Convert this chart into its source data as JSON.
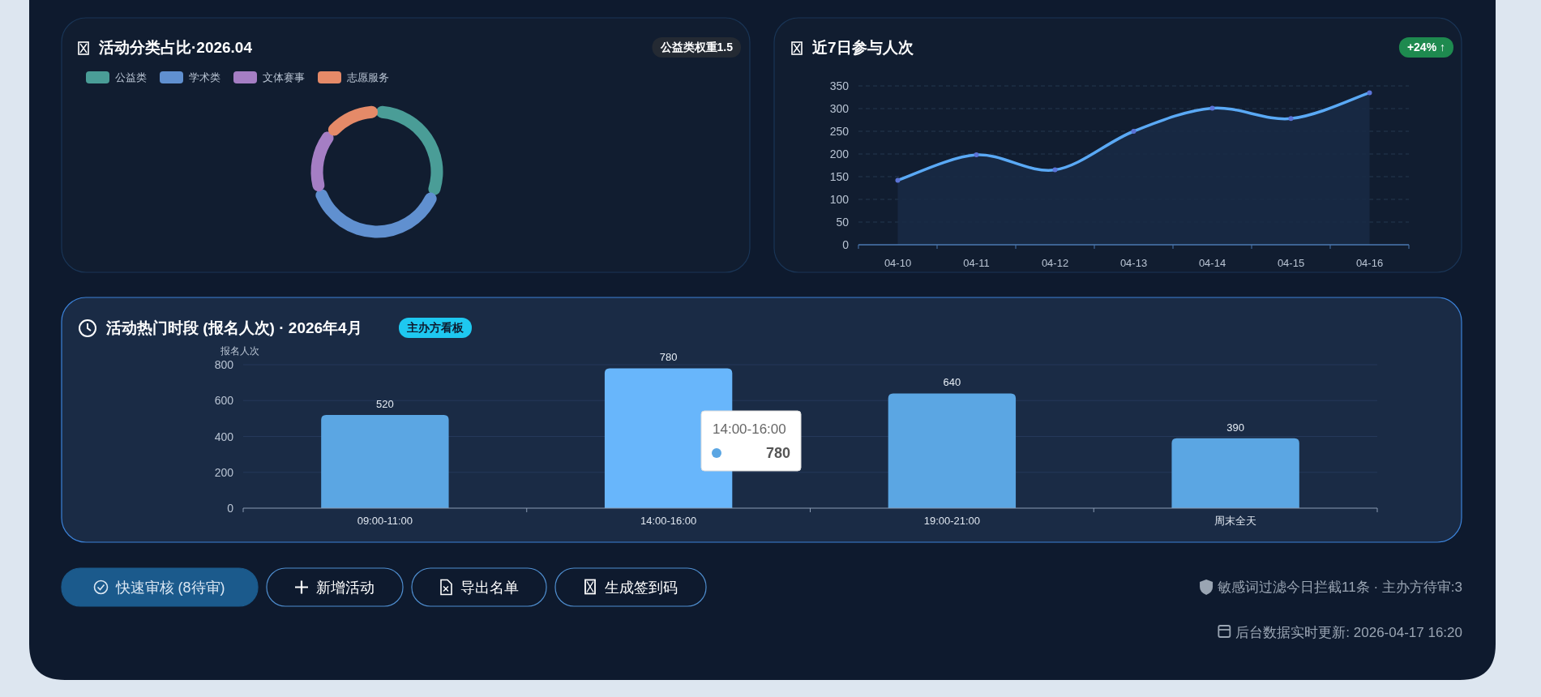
{
  "chart_data": [
    {
      "type": "donut",
      "title": "活动分类占比·2026.04",
      "annotations": [
        "公益类权重1.5"
      ],
      "categories": [
        "公益类",
        "学术类",
        "文体赛事",
        "志愿服务"
      ],
      "values": [
        31,
        39,
        16,
        14
      ],
      "colors": [
        "#4a9d97",
        "#6090d0",
        "#a57ec4",
        "#e58a68"
      ],
      "legend": "top left"
    },
    {
      "type": "area",
      "title": "近7日参与人次",
      "annotations": [
        "+24% ↑"
      ],
      "categories": [
        "04-10",
        "04-11",
        "04-12",
        "04-13",
        "04-14",
        "04-15",
        "04-16"
      ],
      "series": [
        {
          "color": "#5aa9f5",
          "values": [
            142,
            198,
            165,
            250,
            301,
            278,
            335
          ]
        }
      ],
      "ylim": [
        0,
        350
      ],
      "yticks": [
        0,
        50,
        100,
        150,
        200,
        250,
        300,
        350
      ],
      "grid": "y",
      "marker": "circle"
    },
    {
      "type": "bar",
      "title": "活动热门时段 (报名人次) · 2026年4月",
      "ylabel": "报名人次",
      "annotations": [
        "主办方看板",
        "14:00-16:00",
        "780"
      ],
      "categories": [
        "09:00-11:00",
        "14:00-16:00",
        "19:00-21:00",
        "周末全天"
      ],
      "values": [
        520,
        780,
        640,
        390
      ],
      "colors": [
        "#5ba6e3",
        "#68b6fb",
        "#5ba6e3",
        "#5ba6e3"
      ],
      "ylim": [
        0,
        800
      ],
      "yticks": [
        0,
        200,
        400,
        600,
        800
      ],
      "grid": "y",
      "data_labels": true
    },
    {
      "type": "other",
      "annotations": [
        "快速审核 (8待审)",
        "新增活动",
        "导出名单",
        "生成签到码",
        "敏感词过滤今日拦截11条 · 主办方待审:3",
        "后台数据实时更新: 2026-04-17 16:20"
      ]
    }
  ]
}
